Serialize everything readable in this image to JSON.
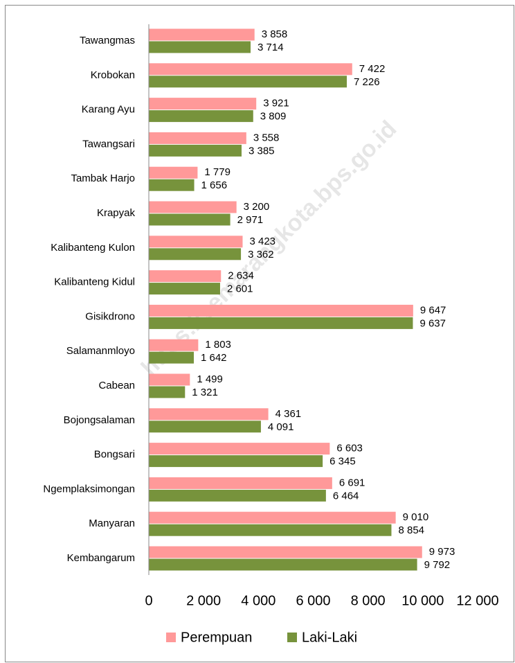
{
  "chart_data": {
    "type": "hbar",
    "categories": [
      "Tawangmas",
      "Krobokan",
      "Karang Ayu",
      "Tawangsari",
      "Tambak Harjo",
      "Krapyak",
      "Kalibanteng Kulon",
      "Kalibanteng Kidul",
      "Gisikdrono",
      "Salamanmloyo",
      "Cabean",
      "Bojongsalaman",
      "Bongsari",
      "Ngemplaksimongan",
      "Manyaran",
      "Kembangarum"
    ],
    "series": [
      {
        "name": "Perempuan",
        "color": "#ff9999",
        "values": [
          3858,
          7422,
          3921,
          3558,
          1779,
          3200,
          3423,
          2634,
          9647,
          1803,
          1499,
          4361,
          6603,
          6691,
          9010,
          9973
        ],
        "value_labels": [
          "3 858",
          "7 422",
          "3 921",
          "3 558",
          "1 779",
          "3 200",
          "3 423",
          "2 634",
          "9 647",
          "1 803",
          "1 499",
          "4 361",
          "6 603",
          "6 691",
          "9 010",
          "9 973"
        ]
      },
      {
        "name": "Laki-Laki",
        "color": "#77933c",
        "values": [
          3714,
          7226,
          3809,
          3385,
          1656,
          2971,
          3362,
          2601,
          9637,
          1642,
          1321,
          4091,
          6345,
          6464,
          8854,
          9792
        ],
        "value_labels": [
          "3 714",
          "7 226",
          "3 809",
          "3 385",
          "1 656",
          "2 971",
          "3 362",
          "2 601",
          "9 637",
          "1 642",
          "1 321",
          "4 091",
          "6 345",
          "6 464",
          "8 854",
          "9 792"
        ]
      }
    ],
    "xlim": [
      0,
      12000
    ],
    "xticks": [
      0,
      {
        "value": 2000,
        "label": "2 000"
      },
      {
        "value": 4000,
        "label": "4 000"
      },
      {
        "value": 6000,
        "label": "6 000"
      },
      {
        "value": 8000,
        "label": "8 000"
      },
      {
        "value": 10000,
        "label": "10 000"
      },
      {
        "value": 12000,
        "label": "12 000"
      }
    ],
    "legend": "bottom",
    "watermark": "https://semarangkota.bps.go.id"
  }
}
